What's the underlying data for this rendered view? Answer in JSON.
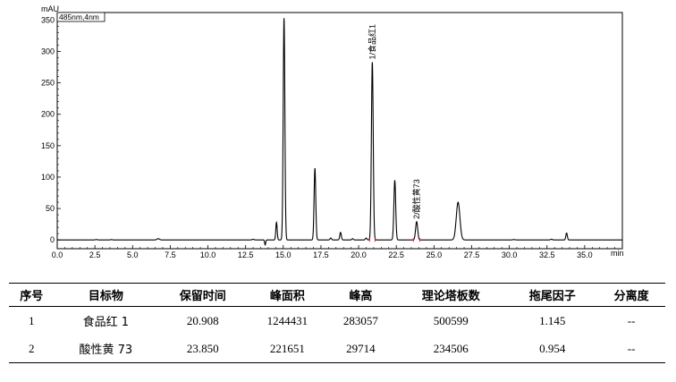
{
  "chart_data": {
    "type": "line",
    "ylabel": "mAU",
    "xlabel": "min",
    "detector_label": "485nm,4nm",
    "xlim": [
      0,
      37.5
    ],
    "ylim": [
      -14,
      362
    ],
    "x_ticks": [
      "0.0",
      "2.5",
      "5.0",
      "7.5",
      "10.0",
      "12.5",
      "15.0",
      "17.5",
      "20.0",
      "22.5",
      "25.0",
      "27.5",
      "30.0",
      "32.5",
      "35.0"
    ],
    "x_tick_values": [
      0,
      2.5,
      5,
      7.5,
      10,
      12.5,
      15,
      17.5,
      20,
      22.5,
      25,
      27.5,
      30,
      32.5,
      35
    ],
    "y_ticks": [
      "0",
      "50",
      "100",
      "150",
      "200",
      "250",
      "300",
      "350"
    ],
    "y_tick_values": [
      0,
      50,
      100,
      150,
      200,
      250,
      300,
      350
    ],
    "peaks": [
      {
        "rt": 2.6,
        "height": 0.6,
        "width": 0.06
      },
      {
        "rt": 3.6,
        "height": 0.5,
        "width": 0.06
      },
      {
        "rt": 6.7,
        "height": 2,
        "width": 0.08
      },
      {
        "rt": 13.0,
        "height": 1,
        "width": 0.06
      },
      {
        "rt": 13.8,
        "height": -8,
        "width": 0.035
      },
      {
        "rt": 14.55,
        "height": 28,
        "width": 0.045
      },
      {
        "rt": 15.05,
        "height": 353,
        "width": 0.055
      },
      {
        "rt": 17.1,
        "height": 114,
        "width": 0.055
      },
      {
        "rt": 18.15,
        "height": 3,
        "width": 0.05
      },
      {
        "rt": 18.8,
        "height": 12,
        "width": 0.05
      },
      {
        "rt": 19.6,
        "height": 2,
        "width": 0.05
      },
      {
        "rt": 20.5,
        "height": 3,
        "width": 0.05
      },
      {
        "rt": 20.908,
        "height": 283,
        "width": 0.06
      },
      {
        "rt": 22.4,
        "height": 95,
        "width": 0.06
      },
      {
        "rt": 23.85,
        "height": 29,
        "width": 0.07
      },
      {
        "rt": 26.6,
        "height": 60,
        "width": 0.12
      },
      {
        "rt": 30.3,
        "height": 0.5,
        "width": 0.08
      },
      {
        "rt": 32.8,
        "height": 1,
        "width": 0.06
      },
      {
        "rt": 33.8,
        "height": 11,
        "width": 0.05
      }
    ],
    "annotations": [
      {
        "rt": 20.908,
        "height": 283,
        "text": "1/食品红1"
      },
      {
        "rt": 23.85,
        "height": 29,
        "text": "2/酸性黄73"
      }
    ],
    "colors": {
      "trace": "#000000",
      "marker": "#e02020"
    }
  },
  "table": {
    "headers": [
      "序号",
      "目标物",
      "保留时间",
      "峰面积",
      "峰高",
      "理论塔板数",
      "拖尾因子",
      "分离度"
    ],
    "rows": [
      [
        "1",
        "食品红 1",
        "20.908",
        "1244431",
        "283057",
        "500599",
        "1.145",
        "--"
      ],
      [
        "2",
        "酸性黄 73",
        "23.850",
        "221651",
        "29714",
        "234506",
        "0.954",
        "--"
      ]
    ]
  }
}
